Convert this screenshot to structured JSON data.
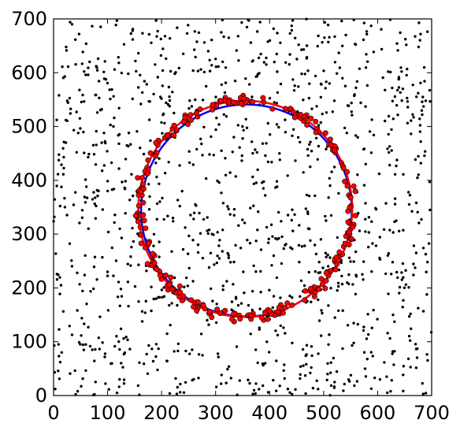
{
  "chart_data": {
    "type": "scatter",
    "title": "",
    "xlabel": "",
    "ylabel": "",
    "xlim": [
      0,
      700
    ],
    "ylim": [
      0,
      700
    ],
    "xticks": [
      0,
      100,
      200,
      300,
      400,
      500,
      600,
      700
    ],
    "yticks": [
      0,
      100,
      200,
      300,
      400,
      500,
      600,
      700
    ],
    "grid": false,
    "legend": "none",
    "series": [
      {
        "kind": "background-points",
        "color": "#000000",
        "count": 1200,
        "distribution": "uniform over [0,700] x [0,700]"
      },
      {
        "kind": "ring-points",
        "color": "#ff0000",
        "edge_color": "#000000",
        "count": 260,
        "center": [
          355,
          347
        ],
        "radius_x": 197,
        "radius_y": 200,
        "radial_spread": 12
      },
      {
        "kind": "fitted-circle",
        "color": "#0000ff",
        "center": [
          357,
          344
        ],
        "radius_x": 195,
        "radius_y": 197
      },
      {
        "kind": "fitted-circle",
        "color": "#ff0000",
        "center": [
          355,
          347
        ],
        "radius_x": 198,
        "radius_y": 201
      }
    ]
  }
}
